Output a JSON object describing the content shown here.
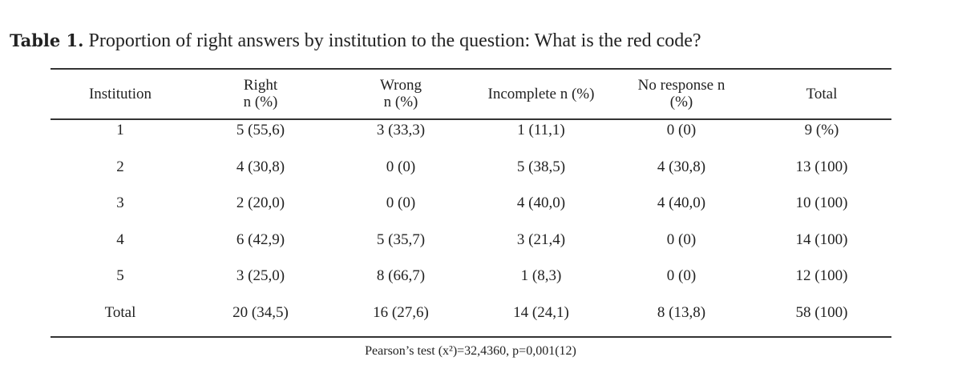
{
  "caption": {
    "label": "Table 1.",
    "text": "Proportion of right answers by institution to the question: What is the red code?"
  },
  "table": {
    "headers": [
      [
        "Institution"
      ],
      [
        "Right",
        "n (%)"
      ],
      [
        "Wrong",
        "n (%)"
      ],
      [
        "Incomplete n (%)"
      ],
      [
        "No response n",
        "(%)"
      ],
      [
        "Total"
      ]
    ],
    "rows": [
      [
        "1",
        "5 (55,6)",
        "3 (33,3)",
        "1 (11,1)",
        "0 (0)",
        "9 (%)"
      ],
      [
        "2",
        "4 (30,8)",
        "0 (0)",
        "5 (38,5)",
        "4 (30,8)",
        "13 (100)"
      ],
      [
        "3",
        "2 (20,0)",
        "0 (0)",
        "4 (40,0)",
        "4 (40,0)",
        "10 (100)"
      ],
      [
        "4",
        "6 (42,9)",
        "5 (35,7)",
        "3 (21,4)",
        "0 (0)",
        "14 (100)"
      ],
      [
        "5",
        "3 (25,0)",
        "8 (66,7)",
        "1 (8,3)",
        "0 (0)",
        "12 (100)"
      ],
      [
        "Total",
        "20 (34,5)",
        "16 (27,6)",
        "14 (24,1)",
        "8 (13,8)",
        "58 (100)"
      ]
    ]
  },
  "footnote": "Pearson’s test (x²)=32,4360, p=0,001(12)"
}
